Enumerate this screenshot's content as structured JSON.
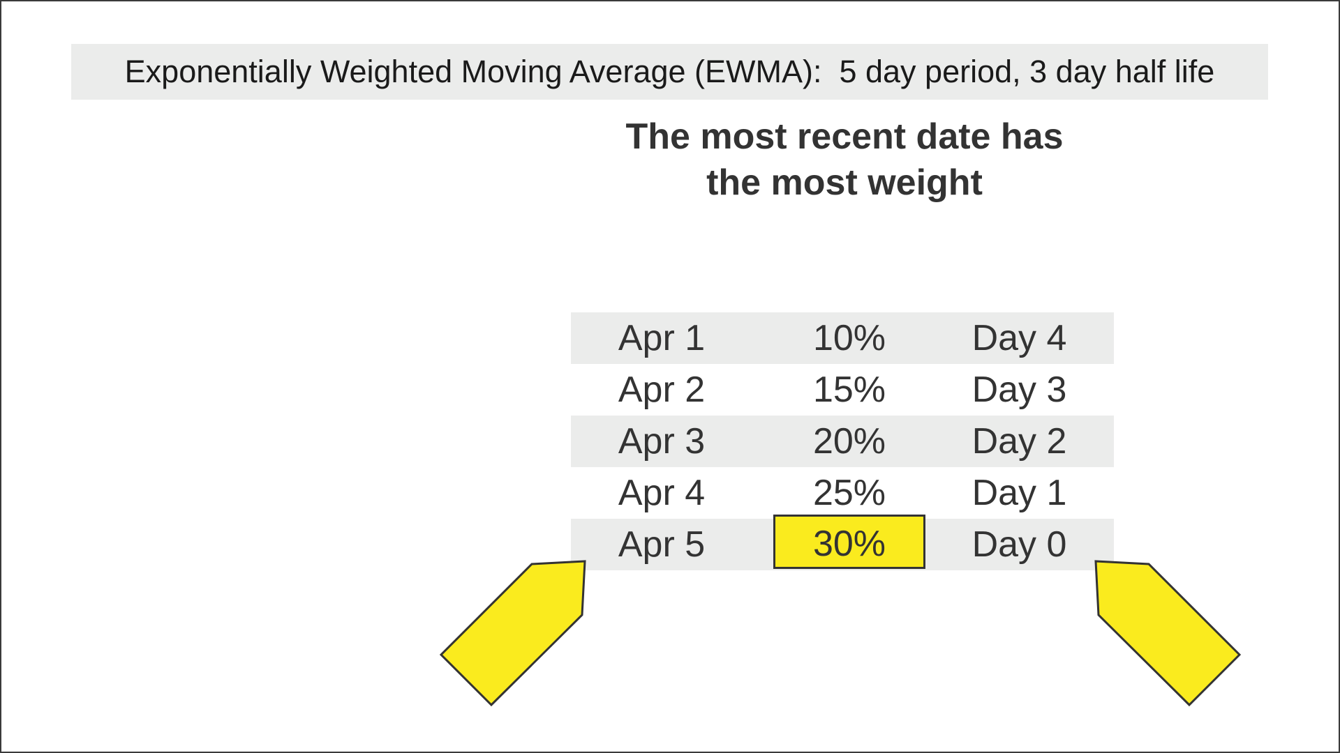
{
  "header": {
    "title": "Exponentially Weighted Moving Average (EWMA):  5 day period, 3 day half life"
  },
  "subtitle": {
    "line1": "The most recent date has",
    "line2": "the most weight"
  },
  "table": {
    "rows": [
      {
        "date": "Apr 1",
        "weight": "10%",
        "day": "Day 4"
      },
      {
        "date": "Apr 2",
        "weight": "15%",
        "day": "Day 3"
      },
      {
        "date": "Apr 3",
        "weight": "20%",
        "day": "Day 2"
      },
      {
        "date": "Apr 4",
        "weight": "25%",
        "day": "Day 1"
      },
      {
        "date": "Apr 5",
        "weight": "30%",
        "day": "Day 0"
      }
    ],
    "highlighted_row": 4
  },
  "colors": {
    "highlight": "#faeb1e",
    "band": "#ebeceb",
    "text": "#333333",
    "outline": "#333333"
  },
  "icons": [
    "arrow-left-icon",
    "arrow-right-icon"
  ]
}
